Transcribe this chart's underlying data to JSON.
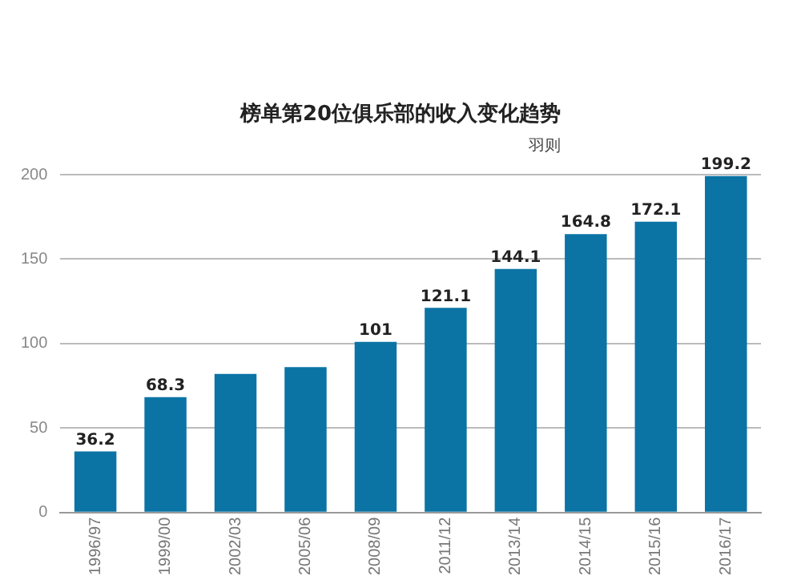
{
  "chart_data": {
    "type": "bar",
    "title": "榜单第20位俱乐部的收入变化趋势",
    "annotations": [
      "羽则"
    ],
    "categories": [
      "1996/97",
      "1999/00",
      "2002/03",
      "2005/06",
      "2008/09",
      "2011/12",
      "2013/14",
      "2014/15",
      "2015/16",
      "2016/17"
    ],
    "values": [
      36.2,
      68.3,
      82,
      86,
      101,
      121.1,
      144.1,
      164.8,
      172.1,
      199.2
    ],
    "value_labels": [
      "36.2",
      "68.3",
      null,
      null,
      "101",
      "121.1",
      "144.1",
      "164.8",
      "172.1",
      "199.2"
    ],
    "color": "#0b74a5",
    "ylim": [
      0,
      200
    ],
    "yticks": [
      0,
      50,
      100,
      150,
      200
    ],
    "grid": "y",
    "legend": false
  }
}
